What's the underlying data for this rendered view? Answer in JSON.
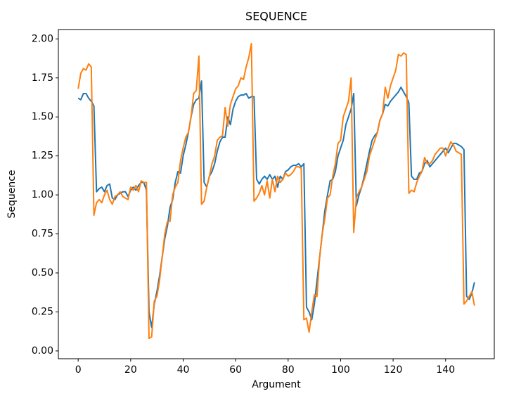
{
  "chart_data": {
    "type": "line",
    "title": "SEQUENCE",
    "x_label": "Argument",
    "y_label": "Sequence",
    "x": [
      0,
      1,
      2,
      3,
      4,
      5,
      6,
      7,
      8,
      9,
      10,
      11,
      12,
      13,
      14,
      15,
      16,
      17,
      18,
      19,
      20,
      21,
      22,
      23,
      24,
      25,
      26,
      27,
      28,
      29,
      30,
      31,
      32,
      33,
      34,
      35,
      36,
      37,
      38,
      39,
      40,
      41,
      42,
      43,
      44,
      45,
      46,
      47,
      48,
      49,
      50,
      51,
      52,
      53,
      54,
      55,
      56,
      57,
      58,
      59,
      60,
      61,
      62,
      63,
      64,
      65,
      66,
      67,
      68,
      69,
      70,
      71,
      72,
      73,
      74,
      75,
      76,
      77,
      78,
      79,
      80,
      81,
      82,
      83,
      84,
      85,
      86,
      87,
      88,
      89,
      90,
      91,
      92,
      93,
      94,
      95,
      96,
      97,
      98,
      99,
      100,
      101,
      102,
      103,
      104,
      105,
      106,
      107,
      108,
      109,
      110,
      111,
      112,
      113,
      114,
      115,
      116,
      117,
      118,
      119,
      120,
      121,
      122,
      123,
      124,
      125,
      126,
      127,
      128,
      129,
      130,
      131,
      132,
      133,
      134,
      135,
      136,
      137,
      138,
      139,
      140,
      141,
      142,
      143,
      144,
      145,
      146,
      147,
      148,
      149,
      150,
      151
    ],
    "series": [
      {
        "color": "#1f77b4",
        "values": [
          1.62,
          1.61,
          1.65,
          1.65,
          1.62,
          1.6,
          1.57,
          1.02,
          1.04,
          1.05,
          1.02,
          1.06,
          1.07,
          0.98,
          0.97,
          1.0,
          1.01,
          1.02,
          1.02,
          0.99,
          1.03,
          1.05,
          1.03,
          1.06,
          1.08,
          1.08,
          1.03,
          0.25,
          0.15,
          0.3,
          0.38,
          0.48,
          0.6,
          0.72,
          0.8,
          0.92,
          0.97,
          1.08,
          1.15,
          1.14,
          1.25,
          1.32,
          1.4,
          1.5,
          1.58,
          1.61,
          1.62,
          1.73,
          1.08,
          1.05,
          1.12,
          1.15,
          1.2,
          1.28,
          1.34,
          1.37,
          1.37,
          1.5,
          1.45,
          1.55,
          1.6,
          1.63,
          1.64,
          1.64,
          1.65,
          1.62,
          1.63,
          1.63,
          1.1,
          1.07,
          1.1,
          1.12,
          1.1,
          1.13,
          1.1,
          1.12,
          1.05,
          1.12,
          1.1,
          1.15,
          1.16,
          1.18,
          1.19,
          1.19,
          1.2,
          1.18,
          1.2,
          0.28,
          0.25,
          0.2,
          0.3,
          0.45,
          0.6,
          0.75,
          0.9,
          1.0,
          1.09,
          1.1,
          1.15,
          1.25,
          1.3,
          1.35,
          1.45,
          1.5,
          1.55,
          1.65,
          0.93,
          1.0,
          1.05,
          1.12,
          1.2,
          1.28,
          1.35,
          1.38,
          1.4,
          1.48,
          1.52,
          1.58,
          1.57,
          1.6,
          1.62,
          1.64,
          1.66,
          1.69,
          1.66,
          1.63,
          1.59,
          1.12,
          1.1,
          1.1,
          1.14,
          1.15,
          1.2,
          1.22,
          1.18,
          1.2,
          1.22,
          1.24,
          1.26,
          1.28,
          1.3,
          1.27,
          1.3,
          1.33,
          1.33,
          1.32,
          1.31,
          1.29,
          0.35,
          0.33,
          0.37,
          0.44
        ]
      },
      {
        "color": "#ff7f0e",
        "values": [
          1.68,
          1.78,
          1.81,
          1.8,
          1.84,
          1.82,
          0.87,
          0.95,
          0.97,
          0.95,
          1.0,
          1.03,
          0.97,
          0.94,
          0.99,
          1.0,
          1.02,
          0.99,
          0.98,
          0.97,
          1.05,
          1.03,
          1.06,
          1.02,
          1.09,
          1.08,
          1.08,
          0.08,
          0.09,
          0.32,
          0.35,
          0.45,
          0.6,
          0.75,
          0.83,
          0.83,
          1.0,
          1.05,
          1.08,
          1.22,
          1.3,
          1.37,
          1.4,
          1.5,
          1.65,
          1.67,
          1.89,
          0.94,
          0.96,
          1.05,
          1.12,
          1.2,
          1.25,
          1.35,
          1.37,
          1.38,
          1.56,
          1.44,
          1.58,
          1.63,
          1.68,
          1.7,
          1.75,
          1.74,
          1.82,
          1.88,
          1.97,
          0.96,
          0.98,
          1.01,
          1.06,
          1.0,
          1.09,
          0.98,
          1.1,
          1.02,
          1.12,
          1.08,
          1.1,
          1.14,
          1.12,
          1.13,
          1.15,
          1.18,
          1.18,
          1.17,
          0.2,
          0.21,
          0.12,
          0.25,
          0.36,
          0.35,
          0.6,
          0.75,
          0.85,
          0.98,
          1.0,
          1.12,
          1.2,
          1.33,
          1.35,
          1.5,
          1.55,
          1.6,
          1.75,
          0.76,
          0.98,
          1.02,
          1.05,
          1.1,
          1.15,
          1.25,
          1.3,
          1.35,
          1.4,
          1.48,
          1.52,
          1.69,
          1.62,
          1.7,
          1.75,
          1.8,
          1.9,
          1.89,
          1.91,
          1.9,
          1.01,
          1.03,
          1.02,
          1.08,
          1.12,
          1.15,
          1.24,
          1.2,
          1.2,
          1.22,
          1.26,
          1.28,
          1.3,
          1.3,
          1.25,
          1.3,
          1.34,
          1.32,
          1.28,
          1.27,
          1.26,
          0.3,
          0.32,
          0.35,
          0.38,
          0.29
        ]
      }
    ],
    "xlim": [
      -7.55,
      158.55
    ],
    "xticks": [
      0,
      20,
      40,
      60,
      80,
      100,
      120,
      140
    ],
    "ylim": [
      -0.05,
      2.06
    ],
    "yticks": [
      {
        "value": 0,
        "label": "0.00"
      },
      {
        "value": 0.25,
        "label": "0.25"
      },
      {
        "value": 0.5,
        "label": "0.50"
      },
      {
        "value": 0.75,
        "label": "0.75"
      },
      {
        "value": 1,
        "label": "1.00"
      },
      {
        "value": 1.25,
        "label": "1.25"
      },
      {
        "value": 1.5,
        "label": "1.50"
      },
      {
        "value": 1.75,
        "label": "1.75"
      },
      {
        "value": 2,
        "label": "2.00"
      }
    ]
  }
}
